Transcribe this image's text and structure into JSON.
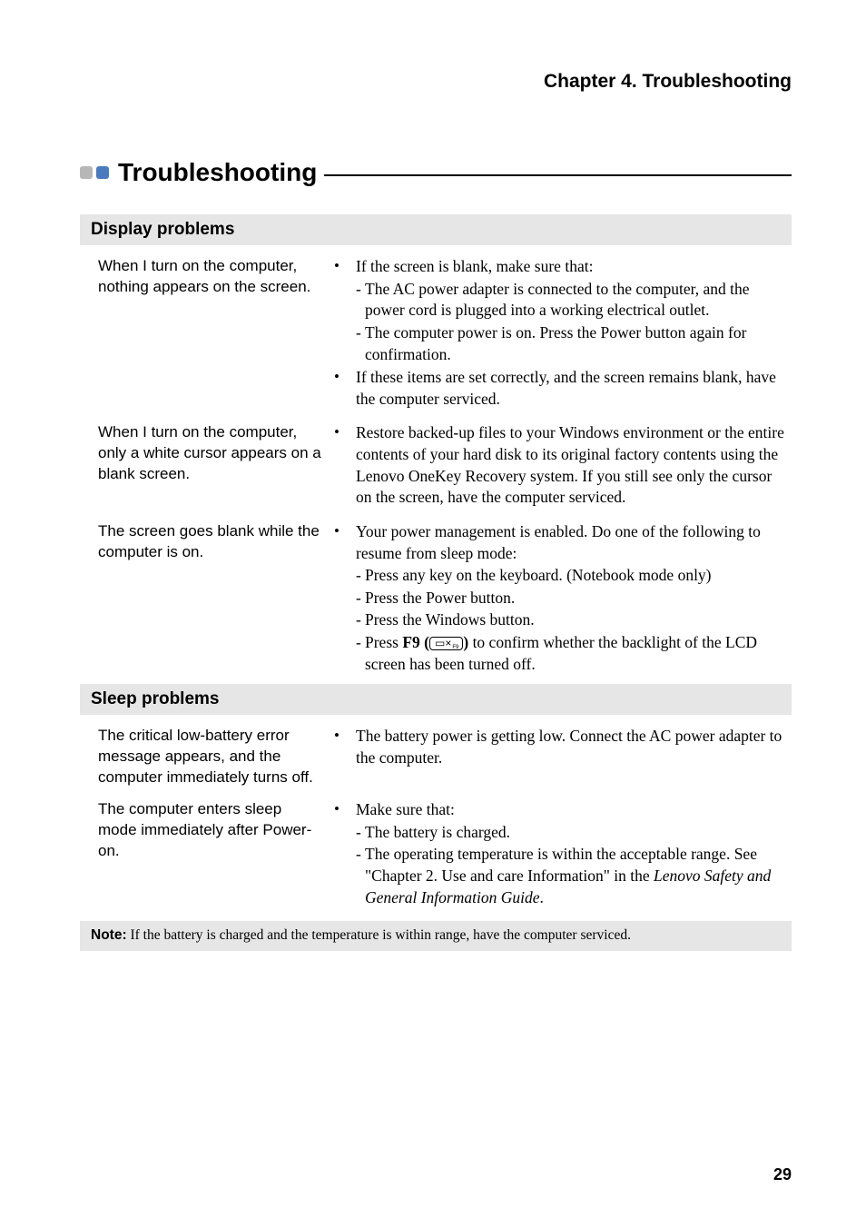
{
  "colors": {
    "page_bg": "#ffffff",
    "text": "#000000",
    "subhead_bg": "#e6e6e6",
    "bullet_gray": "#b7b7b7",
    "bullet_blue": "#4a7bbf"
  },
  "header": {
    "chapter": "Chapter 4. Troubleshooting"
  },
  "section": {
    "title": "Troubleshooting"
  },
  "display": {
    "heading": "Display problems",
    "q1": "When I turn on the computer, nothing appears on the screen.",
    "a1_lead": "If the screen is blank, make sure that:",
    "a1_s1": "The AC power adapter is connected to the computer, and the power cord is plugged into a working electrical outlet.",
    "a1_s2": "The computer power is on. Press the Power button again for confirmation.",
    "a1_b2": "If these items are set correctly, and the screen remains blank, have the computer serviced.",
    "q2": "When I turn on the computer, only a white cursor appears on a blank screen.",
    "a2": "Restore backed-up files to your Windows environment or the entire contents of your hard disk to its original factory contents using the Lenovo OneKey Recovery system. If you still see only the cursor on the screen, have the computer serviced.",
    "q3": "The screen goes blank while the computer is on.",
    "a3_lead": "Your power management is enabled. Do one of the following to resume from sleep mode:",
    "a3_s1": "Press any key on the keyboard. (Notebook mode only)",
    "a3_s2": "Press the Power button.",
    "a3_s3": "Press the Windows button.",
    "a3_s4a": "Press ",
    "a3_s4_key": "F9 (",
    "a3_s4_keylabel": "▭×",
    "a3_s4b": ") to confirm whether the backlight of the LCD screen has been turned off."
  },
  "sleep": {
    "heading": "Sleep problems",
    "q1": "The critical low-battery error message appears, and the computer immediately turns off.",
    "a1": "The battery power is getting low. Connect the AC power adapter to the computer.",
    "q2": "The computer enters sleep mode immediately after Power-on.",
    "a2_lead": "Make sure that:",
    "a2_s1": "The battery is charged.",
    "a2_s2a": "The operating temperature is within the acceptable range. See \"Chapter 2. Use and care Information\" in the ",
    "a2_s2_italic": "Lenovo Safety and General Information Guide",
    "a2_s2b": "."
  },
  "note": {
    "label": "Note:",
    "text": " If the battery is charged and the temperature is within range, have the computer serviced."
  },
  "page_number": "29"
}
